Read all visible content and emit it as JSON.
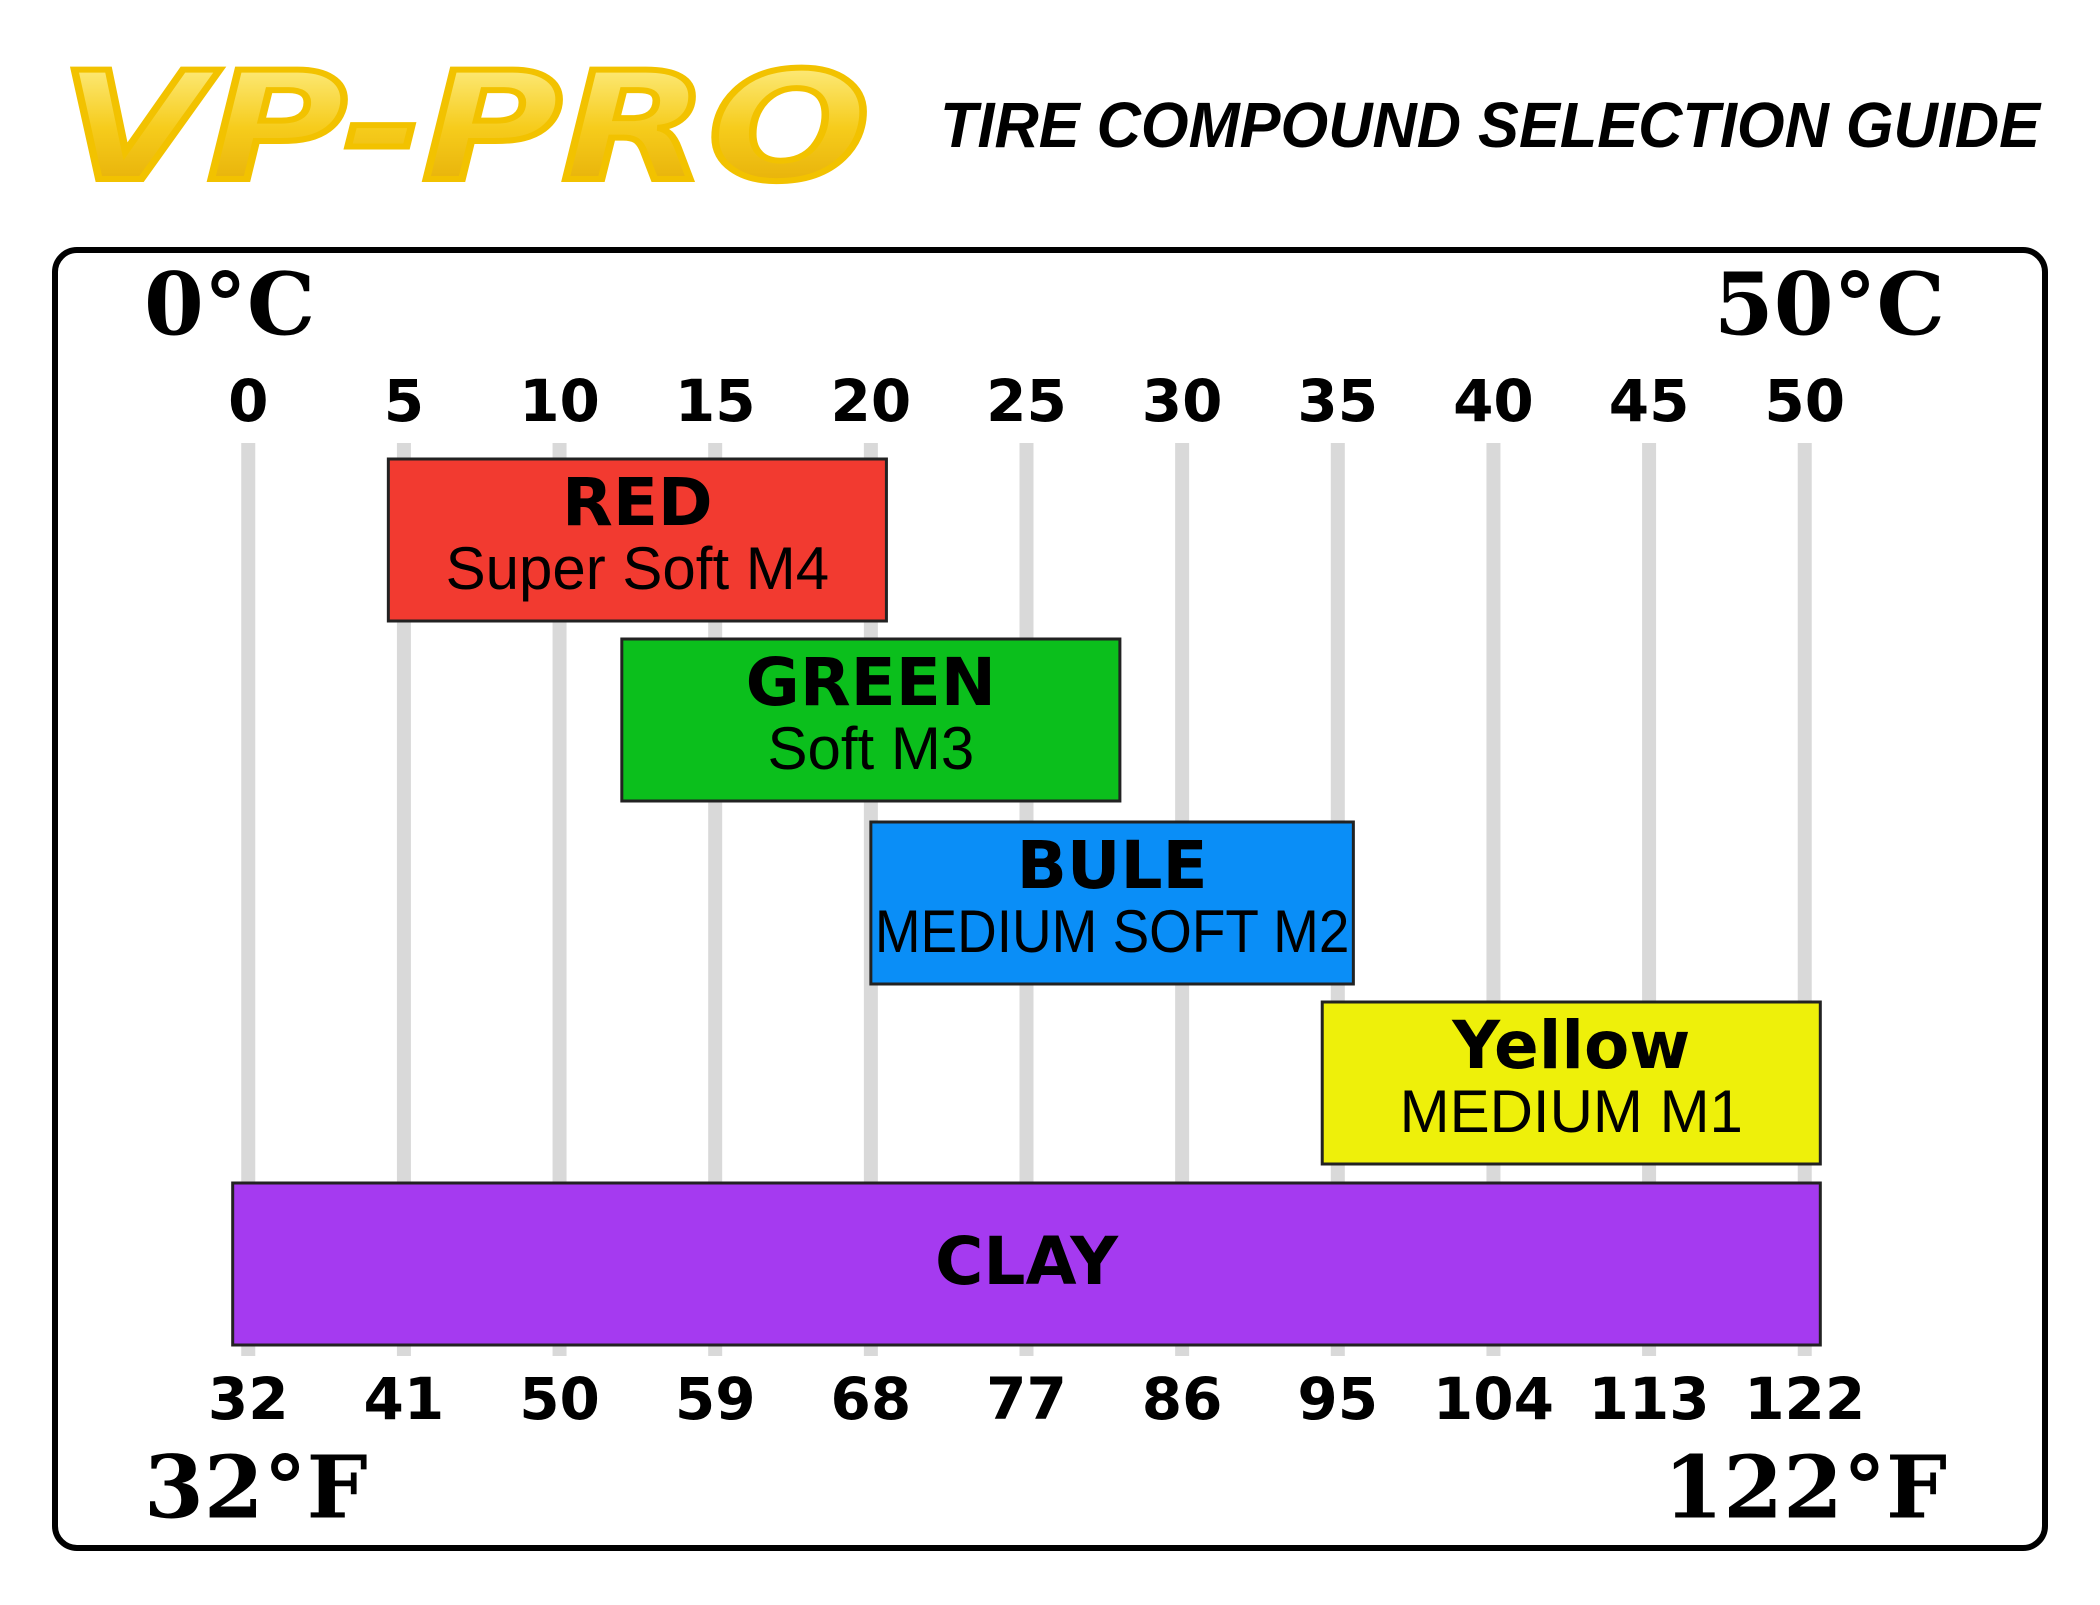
{
  "brand": "VP-PRO",
  "chart_data": {
    "type": "range-bar",
    "title": "TIRE COMPOUND SELECTION GUIDE",
    "x_start_label": "0°C",
    "x_end_label": "50°C",
    "x2_start_label": "32°F",
    "x2_end_label": "122°F",
    "xlim": [
      -2,
      52
    ],
    "xticks": [
      0,
      5,
      10,
      15,
      20,
      25,
      30,
      35,
      40,
      45,
      50
    ],
    "x2lim": [
      28.4,
      125.6
    ],
    "x2ticks": [
      32,
      41,
      50,
      59,
      68,
      77,
      86,
      95,
      104,
      113,
      122
    ],
    "grid": true,
    "bars": [
      {
        "name": "RED",
        "description": "Super Soft M4",
        "color": "#f23a30",
        "start": 4.5,
        "end": 20.5
      },
      {
        "name": "GREEN",
        "description": "Soft M3",
        "color": "#0bbf1c",
        "start": 12,
        "end": 28
      },
      {
        "name": "BULE",
        "description": "MEDIUM SOFT M2",
        "color": "#0a8ef7",
        "start": 20,
        "end": 35.5
      },
      {
        "name": "Yellow",
        "description": "MEDIUM M1",
        "color": "#eef00a",
        "start": 34.5,
        "end": 50.5
      },
      {
        "name": "CLAY",
        "color": "#a53af0",
        "start": -0.5,
        "end": 50.5
      }
    ]
  }
}
